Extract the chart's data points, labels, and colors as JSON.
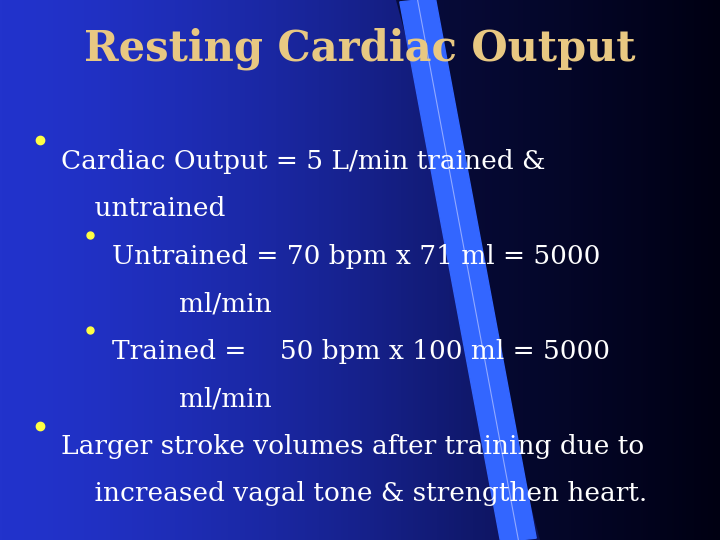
{
  "title": "Resting Cardiac Output",
  "title_color": "#E8C882",
  "title_fontsize": 30,
  "bg_color_left": "#2233cc",
  "bg_color_right": "#000015",
  "text_color": "#ffffff",
  "bullet_color": "#ffff44",
  "lines": [
    {
      "level": 1,
      "text": "Cardiac Output = 5 L/min trained &",
      "fontsize": 19
    },
    {
      "level": 1,
      "text": "    untrained",
      "fontsize": 19,
      "nobullet": true
    },
    {
      "level": 2,
      "text": "Untrained = 70 bpm x 71 ml = 5000",
      "fontsize": 19
    },
    {
      "level": 2,
      "text": "        ml/min",
      "fontsize": 19,
      "nobullet": true
    },
    {
      "level": 2,
      "text": "Trained =    50 bpm x 100 ml = 5000",
      "fontsize": 19
    },
    {
      "level": 2,
      "text": "        ml/min",
      "fontsize": 19,
      "nobullet": true
    },
    {
      "level": 1,
      "text": "Larger stroke volumes after training due to",
      "fontsize": 19
    },
    {
      "level": 1,
      "text": "    increased vagal tone & strengthen heart.",
      "fontsize": 19,
      "nobullet": true
    }
  ]
}
